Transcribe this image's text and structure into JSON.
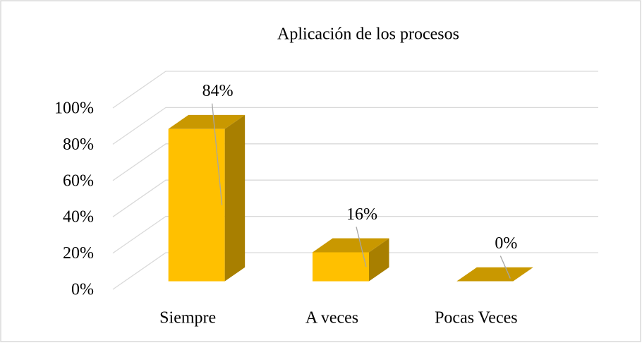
{
  "chart_data": {
    "type": "bar3d",
    "title": "Aplicación de los procesos",
    "categories": [
      "Siempre",
      "A veces",
      "Pocas Veces"
    ],
    "values": [
      84,
      16,
      0
    ],
    "value_labels": [
      "84%",
      "16%",
      "0%"
    ],
    "color": "#FFC000",
    "ylim": [
      0,
      100
    ],
    "yticks": [
      {
        "value": 0,
        "label": "0%"
      },
      {
        "value": 20,
        "label": "20%"
      },
      {
        "value": 40,
        "label": "40%"
      },
      {
        "value": 60,
        "label": "60%"
      },
      {
        "value": 80,
        "label": "80%"
      },
      {
        "value": 100,
        "label": "100%"
      }
    ],
    "grid": true
  }
}
